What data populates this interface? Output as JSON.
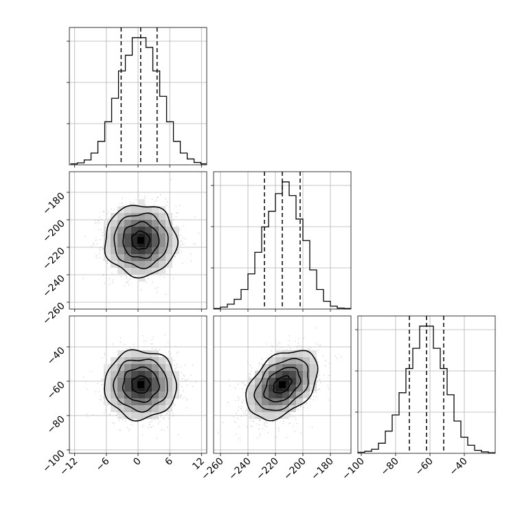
{
  "chart_data": {
    "type": "corner",
    "parameters": [
      {
        "id": "p1",
        "range": [
          -13,
          13
        ],
        "ticks": [
          -12,
          -6,
          0,
          6,
          12
        ],
        "tick_labels": [
          "−12",
          "−6",
          "0",
          "6",
          "12"
        ],
        "quantiles": [
          -3.2,
          0.5,
          3.6
        ],
        "hist_edges_start": -12.8,
        "hist_bin_width": 1.3,
        "hist_counts": [
          0.5,
          1,
          2.5,
          6,
          12,
          22,
          34,
          48,
          56,
          65,
          65,
          60,
          48,
          35,
          22,
          12,
          6,
          3,
          1.2,
          0.5
        ]
      },
      {
        "id": "p2",
        "range": [
          -265,
          -165
        ],
        "ticks": [
          -260,
          -240,
          -220,
          -200,
          -180
        ],
        "tick_labels": [
          "−260",
          "−240",
          "−220",
          "−200",
          "−180"
        ],
        "quantiles": [
          -228,
          -215,
          -202
        ],
        "hist_edges_start": -265,
        "hist_bin_width": 5,
        "hist_counts": [
          0.3,
          1,
          2.5,
          5,
          10,
          18,
          29,
          42,
          50,
          59,
          65,
          58,
          46,
          35,
          20,
          10,
          4,
          1.5,
          0.5,
          0.3
        ]
      },
      {
        "id": "p3",
        "range": [
          -102,
          -22
        ],
        "ticks": [
          -100,
          -80,
          -60,
          -40
        ],
        "tick_labels": [
          "−100",
          "−80",
          "−60",
          "−40"
        ],
        "quantiles": [
          -72,
          -62,
          -52
        ],
        "hist_edges_start": -102,
        "hist_bin_width": 4,
        "hist_counts": [
          0.5,
          1,
          2,
          5,
          11,
          19,
          30,
          42,
          52,
          63,
          63,
          52,
          42,
          29,
          16,
          8,
          4,
          1.5,
          0.7,
          0.3
        ]
      }
    ],
    "pairs": [
      {
        "x": "p1",
        "y": "p2",
        "mean": [
          0.5,
          -215
        ],
        "sd": [
          3.4,
          13
        ],
        "corr": 0.0
      },
      {
        "x": "p1",
        "y": "p3",
        "mean": [
          0.5,
          -62
        ],
        "sd": [
          3.4,
          10
        ],
        "corr": 0.0
      },
      {
        "x": "p2",
        "y": "p3",
        "mean": [
          -215,
          -62
        ],
        "sd": [
          13,
          10
        ],
        "corr": 0.4
      }
    ],
    "contour_sigma_levels": [
      0.5,
      1.0,
      1.5,
      2.0
    ],
    "grid": true,
    "title": "",
    "xlabel": "",
    "ylabel": ""
  }
}
